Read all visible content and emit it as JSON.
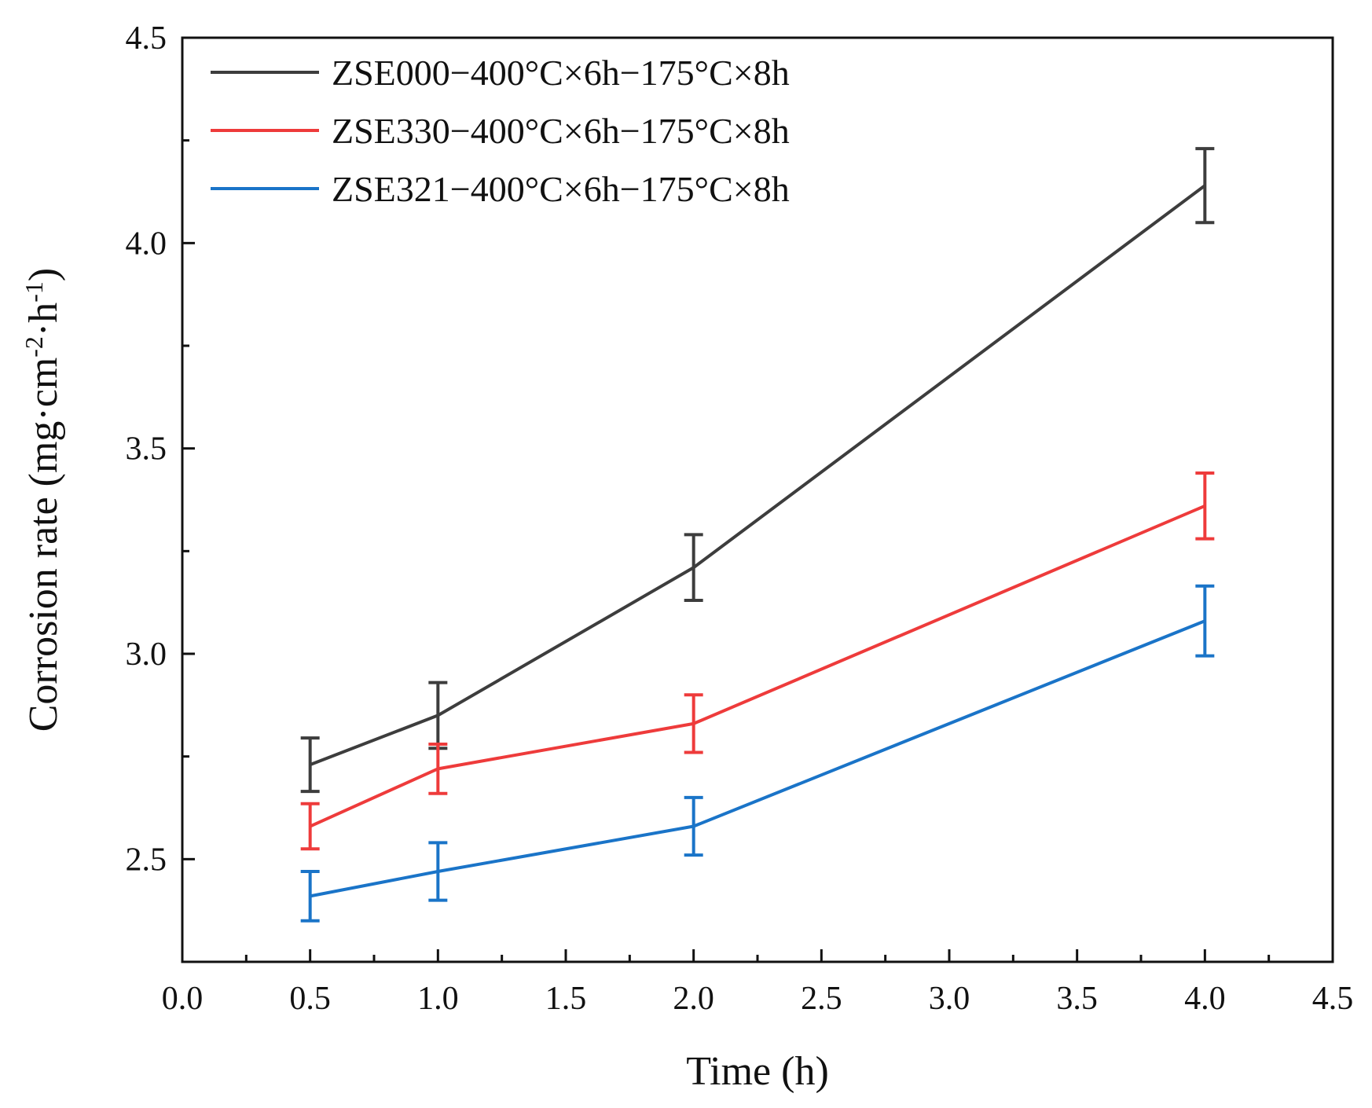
{
  "chart_data": {
    "type": "line",
    "title": "",
    "xlabel": "Time (h)",
    "ylabel_prefix": "Corrosion rate (mg·cm",
    "ylabel_sup1": "-2",
    "ylabel_mid": "·h",
    "ylabel_sup2": "-1",
    "ylabel_suffix": ")",
    "xlim": [
      0.0,
      4.5
    ],
    "ylim": [
      2.25,
      4.5
    ],
    "xticks": [
      "0.0",
      "0.5",
      "1.0",
      "1.5",
      "2.0",
      "2.5",
      "3.0",
      "3.5",
      "4.0",
      "4.5"
    ],
    "yticks": [
      "2.5",
      "3.0",
      "3.5",
      "4.0",
      "4.5"
    ],
    "legend_position": "top-left",
    "grid": false,
    "series": [
      {
        "name": "ZSE000−400°C×6h−175°C×8h",
        "color": "#3d3d3d",
        "x": [
          0.5,
          1.0,
          2.0,
          4.0
        ],
        "y": [
          2.73,
          2.85,
          3.21,
          4.14
        ],
        "err": [
          0.065,
          0.08,
          0.08,
          0.09
        ]
      },
      {
        "name": "ZSE330−400°C×6h−175°C×8h",
        "color": "#ee3b3b",
        "x": [
          0.5,
          1.0,
          2.0,
          4.0
        ],
        "y": [
          2.58,
          2.72,
          2.83,
          3.36
        ],
        "err": [
          0.055,
          0.06,
          0.07,
          0.08
        ]
      },
      {
        "name": "ZSE321−400°C×6h−175°C×8h",
        "color": "#1a74c8",
        "x": [
          0.5,
          1.0,
          2.0,
          4.0
        ],
        "y": [
          2.41,
          2.47,
          2.58,
          3.08
        ],
        "err": [
          0.06,
          0.07,
          0.07,
          0.085
        ]
      }
    ]
  }
}
